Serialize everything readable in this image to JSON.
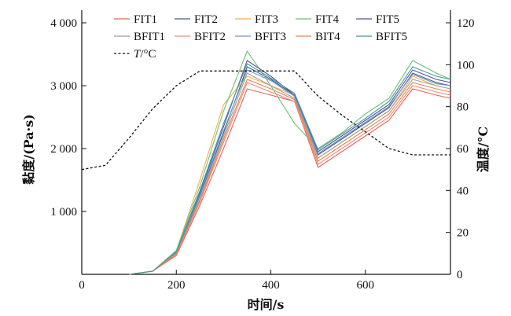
{
  "chart_data": {
    "type": "line",
    "xlabel": "时间/s",
    "ylabel_left": "黏度/(Pa·s)",
    "ylabel_right": "温度/°C",
    "xlim": [
      0,
      780
    ],
    "ylim_left": [
      0,
      4200
    ],
    "ylim_right": [
      0,
      126
    ],
    "x_ticks": [
      0,
      200,
      400,
      600
    ],
    "x_tick_labels": [
      "0",
      "200",
      "400",
      "600"
    ],
    "y_left_ticks": [
      1000,
      2000,
      3000,
      4000
    ],
    "y_left_tick_labels": [
      "1 000",
      "2 000",
      "3 000",
      "4 000"
    ],
    "y_right_ticks": [
      0,
      20,
      40,
      60,
      80,
      100,
      120
    ],
    "y_right_tick_labels": [
      "0",
      "20",
      "40",
      "60",
      "80",
      "100",
      "120"
    ],
    "legend_position": "top",
    "x": [
      100,
      150,
      200,
      250,
      300,
      350,
      400,
      450,
      500,
      550,
      600,
      650,
      700,
      750,
      780
    ],
    "series": [
      {
        "name": "FIT1",
        "axis": "left",
        "color": "#e8635a",
        "values": [
          0,
          50,
          300,
          1100,
          2000,
          2950,
          2850,
          2750,
          1700,
          1950,
          2200,
          2450,
          2950,
          2850,
          2800
        ]
      },
      {
        "name": "FIT2",
        "axis": "left",
        "color": "#3b5e8c",
        "values": [
          0,
          50,
          340,
          1250,
          2250,
          3300,
          3100,
          2850,
          1900,
          2150,
          2400,
          2650,
          3200,
          3050,
          3000
        ]
      },
      {
        "name": "FIT3",
        "axis": "left",
        "color": "#f2b13f",
        "values": [
          0,
          50,
          370,
          1500,
          2700,
          3150,
          3000,
          2850,
          1850,
          2100,
          2350,
          2600,
          3150,
          3000,
          2950
        ]
      },
      {
        "name": "FIT4",
        "axis": "left",
        "color": "#6cbf73",
        "values": [
          0,
          50,
          380,
          1400,
          2600,
          3550,
          3000,
          2400,
          2000,
          2250,
          2550,
          2800,
          3400,
          3200,
          3100
        ]
      },
      {
        "name": "FIT5",
        "axis": "left",
        "color": "#5a4f96",
        "values": [
          0,
          50,
          350,
          1300,
          2350,
          3400,
          3150,
          2850,
          1950,
          2200,
          2450,
          2700,
          3250,
          3100,
          3050
        ]
      },
      {
        "name": "BFIT1",
        "axis": "left",
        "color": "#9e9e9e",
        "values": [
          0,
          50,
          330,
          1200,
          2200,
          3200,
          3000,
          2800,
          1850,
          2100,
          2350,
          2600,
          3100,
          3000,
          2950
        ]
      },
      {
        "name": "BFIT2",
        "axis": "left",
        "color": "#f08a80",
        "values": [
          0,
          50,
          320,
          1150,
          2100,
          3050,
          2900,
          2750,
          1750,
          2000,
          2250,
          2500,
          3000,
          2900,
          2850
        ]
      },
      {
        "name": "BFIT3",
        "axis": "left",
        "color": "#6f93d4",
        "values": [
          0,
          50,
          345,
          1270,
          2280,
          3250,
          3080,
          2830,
          1920,
          2170,
          2420,
          2670,
          3180,
          3030,
          3000
        ]
      },
      {
        "name": "BIT4",
        "axis": "left",
        "color": "#e8864a",
        "values": [
          0,
          50,
          325,
          1180,
          2150,
          3100,
          2950,
          2780,
          1800,
          2050,
          2300,
          2550,
          3050,
          2950,
          2900
        ]
      },
      {
        "name": "BFIT5",
        "axis": "left",
        "color": "#3f9a9a",
        "values": [
          0,
          50,
          360,
          1330,
          2400,
          3350,
          3120,
          2880,
          1980,
          2230,
          2480,
          2750,
          3300,
          3150,
          3100
        ]
      },
      {
        "name": "T/°C",
        "axis": "right",
        "color": "#111111",
        "dashed": true,
        "x": [
          0,
          50,
          100,
          150,
          200,
          250,
          300,
          350,
          400,
          450,
          500,
          550,
          600,
          650,
          700,
          750,
          780
        ],
        "values": [
          50,
          52,
          65,
          79,
          90,
          97,
          97,
          97,
          97,
          97,
          85,
          76,
          68,
          60,
          57,
          57,
          57
        ]
      }
    ]
  }
}
